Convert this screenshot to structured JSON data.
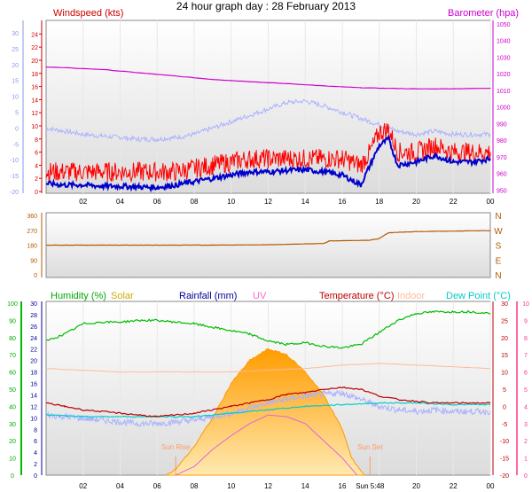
{
  "title": "24 hour graph day : 28 February 2013",
  "chart_data": [
    {
      "type": "line",
      "panel": "wind-baro",
      "labels": {
        "left": "Windspeed (kts)",
        "right": "Barometer (hpa)"
      },
      "x_ticks": [
        "02",
        "04",
        "06",
        "08",
        "10",
        "12",
        "14",
        "16",
        "18",
        "20",
        "22",
        "00"
      ],
      "y_left_ticks": [
        0,
        2,
        4,
        6,
        8,
        10,
        12,
        14,
        16,
        18,
        20,
        22,
        24
      ],
      "y_left_outer_ticks": [
        -20,
        -15,
        -10,
        -5,
        0,
        5,
        10,
        15,
        20,
        25,
        30
      ],
      "y_right_ticks": [
        950,
        960,
        970,
        980,
        990,
        1000,
        1010,
        1020,
        1030,
        1040,
        1050
      ],
      "ylim_left": [
        0,
        25
      ],
      "ylim_right": [
        948,
        1052
      ],
      "series": [
        {
          "key": "barometer",
          "color": "#cc00cc",
          "axis": "right",
          "x": [
            0,
            1,
            2,
            3,
            4,
            5,
            6,
            7,
            8,
            9,
            10,
            11,
            12,
            13,
            14,
            15,
            16,
            17,
            18,
            19,
            20,
            21,
            22,
            23,
            24
          ],
          "y": [
            1024,
            1023.5,
            1023,
            1022.5,
            1021.5,
            1020.5,
            1019.5,
            1018.5,
            1017.5,
            1016.5,
            1015.8,
            1015.2,
            1014.5,
            1014,
            1013.3,
            1012.6,
            1012,
            1011.5,
            1011.2,
            1011,
            1010.8,
            1010.8,
            1010.9,
            1011,
            1011.2
          ]
        },
        {
          "key": "wind-gust",
          "color": "#ff0000",
          "axis": "left",
          "x": [
            0,
            1,
            2,
            3,
            4,
            5,
            6,
            7,
            8,
            9,
            10,
            11,
            12,
            13,
            14,
            15,
            16,
            17,
            17.5,
            18,
            18.5,
            19,
            20,
            21,
            22,
            23,
            24
          ],
          "y": [
            3,
            3,
            3,
            3,
            3,
            3,
            3,
            3,
            3.5,
            4,
            4.5,
            5,
            5,
            5,
            5,
            5,
            5,
            4,
            6,
            9,
            9.5,
            6,
            6,
            7,
            6,
            6,
            6
          ]
        },
        {
          "key": "wind-avg",
          "color": "#0000cc",
          "axis": "left",
          "x": [
            0,
            1,
            2,
            3,
            4,
            5,
            6,
            7,
            8,
            9,
            10,
            11,
            12,
            13,
            14,
            15,
            16,
            17,
            17.5,
            18,
            18.5,
            19,
            20,
            21,
            22,
            23,
            24
          ],
          "y": [
            1.2,
            1,
            1,
            0.8,
            0.8,
            0.7,
            0.6,
            1,
            1.5,
            2,
            2.5,
            3,
            3,
            3.2,
            3.3,
            3,
            2.5,
            1,
            4,
            7,
            8,
            4,
            4.5,
            5.5,
            4.5,
            4.5,
            5
          ]
        },
        {
          "key": "outer-temp",
          "color": "#aab2ff",
          "axis": "outer",
          "x": [
            0,
            1,
            2,
            3,
            4,
            5,
            6,
            7,
            8,
            9,
            10,
            11,
            12,
            13,
            14,
            15,
            16,
            17,
            18,
            19,
            20,
            21,
            22,
            23,
            24
          ],
          "y": [
            0,
            -1,
            -2,
            -2.5,
            -3,
            -3.5,
            -3.5,
            -3,
            -2,
            0,
            2,
            4,
            6,
            8,
            8.5,
            7,
            5,
            3,
            1,
            -1,
            -2,
            -1,
            -2,
            -2,
            -2
          ]
        }
      ]
    },
    {
      "type": "line",
      "panel": "wind-dir",
      "y_left_ticks": [
        0,
        90,
        180,
        270,
        360
      ],
      "y_right_labels": [
        "N",
        "W",
        "S",
        "E",
        "N"
      ],
      "ylim_left": [
        0,
        360
      ],
      "series": [
        {
          "key": "wind-direction",
          "color": "#b35900",
          "x": [
            0,
            6,
            9,
            12,
            15,
            15.3,
            17.5,
            18,
            18.5,
            20,
            22,
            24
          ],
          "y": [
            180,
            180,
            180,
            182,
            190,
            205,
            210,
            220,
            255,
            262,
            265,
            268
          ]
        }
      ]
    },
    {
      "type": "line",
      "panel": "temp-hum",
      "labels": {
        "humidity": "Humidity (%)",
        "solar": "Solar",
        "rainfall": "Rainfall (mm)",
        "uv": "UV",
        "temperature": "Temperature (°C)",
        "indoor": "Indoor",
        "dewpoint": "Dew Point (°C)"
      },
      "annotations": {
        "sunrise": "Sun Rise",
        "sunset": "Sun Set",
        "sunset_time": "Sun 5:48"
      },
      "y_humidity_ticks": [
        0,
        10,
        20,
        30,
        40,
        50,
        60,
        70,
        80,
        90,
        100
      ],
      "y_rain_ticks": [
        0,
        2,
        4,
        6,
        8,
        10,
        12,
        14,
        16,
        18,
        20,
        22,
        24,
        26,
        28,
        30
      ],
      "y_temp_ticks": [
        -20,
        -15,
        -10,
        -5,
        0,
        5,
        10,
        15,
        20,
        25,
        30
      ],
      "y_uv_ticks": [
        0,
        1,
        2,
        3,
        4,
        5,
        6,
        7,
        8,
        9,
        10
      ],
      "ylim_humidity": [
        0,
        100
      ],
      "ylim_temp": [
        -20,
        30
      ],
      "series": [
        {
          "key": "humidity",
          "color": "#00bb00",
          "x": [
            0,
            1,
            2,
            3,
            4,
            5,
            6,
            7,
            8,
            9,
            10,
            11,
            12,
            13,
            14,
            15,
            16,
            17,
            18,
            19,
            20,
            21,
            22,
            23,
            24
          ],
          "y": [
            78,
            82,
            88,
            89,
            89,
            90,
            90,
            89,
            88,
            86,
            84,
            82,
            78,
            76,
            77,
            75,
            74,
            76,
            83,
            90,
            94,
            95,
            95,
            95,
            94
          ]
        },
        {
          "key": "indoor",
          "color": "#ffbb99",
          "x": [
            0,
            2,
            4,
            6,
            8,
            10,
            12,
            14,
            16,
            18,
            20,
            22,
            24
          ],
          "y": [
            11,
            10.5,
            10,
            10,
            10,
            10,
            10.5,
            11,
            12,
            12.5,
            12,
            11.5,
            11
          ]
        },
        {
          "key": "temperature",
          "color": "#bb0000",
          "x": [
            0,
            1,
            2,
            3,
            4,
            5,
            6,
            7,
            8,
            9,
            10,
            11,
            12,
            13,
            14,
            15,
            16,
            17,
            18,
            19,
            20,
            21,
            22,
            23,
            24
          ],
          "y": [
            1,
            0,
            -1,
            -1.5,
            -2,
            -2.5,
            -3,
            -2.5,
            -2,
            -1,
            0,
            1,
            2,
            3.5,
            4,
            5,
            5.5,
            5,
            3,
            2,
            1.5,
            1,
            1,
            1,
            1
          ]
        },
        {
          "key": "feels-like",
          "color": "#aab2ff",
          "x": [
            0,
            1,
            2,
            3,
            4,
            5,
            6,
            7,
            8,
            9,
            10,
            11,
            12,
            13,
            14,
            15,
            16,
            17,
            18,
            19,
            20,
            21,
            22,
            23,
            24
          ],
          "y": [
            -2.5,
            -3,
            -3.5,
            -4,
            -4.5,
            -5,
            -5,
            -4.5,
            -4,
            -3,
            -2,
            -0.5,
            1,
            2,
            3,
            3.5,
            4,
            2,
            0,
            -1,
            -1.5,
            -1,
            -1.5,
            -1.5,
            -1.5
          ]
        },
        {
          "key": "dewpoint",
          "color": "#00cccc",
          "x": [
            0,
            2,
            4,
            6,
            8,
            10,
            12,
            14,
            16,
            18,
            20,
            22,
            24
          ],
          "y": [
            -2.5,
            -3,
            -3,
            -3,
            -3,
            -2,
            -1,
            0,
            0.5,
            1,
            1,
            0.5,
            0.5
          ]
        },
        {
          "key": "solar",
          "color": "#ffaa00",
          "x": [
            6.5,
            7,
            8,
            9,
            10,
            11,
            12,
            13,
            14,
            15,
            16,
            16.5,
            17.2
          ],
          "y": [
            0,
            1,
            5,
            10,
            16,
            20,
            22,
            21,
            18,
            14,
            8,
            3,
            0
          ]
        },
        {
          "key": "uv",
          "color": "#dd66dd",
          "x": [
            7,
            8,
            9,
            10,
            11,
            12,
            13,
            14,
            15,
            16,
            16.8
          ],
          "y": [
            0,
            0.5,
            1.5,
            2.3,
            3,
            3.5,
            3.4,
            3,
            2,
            1,
            0
          ]
        }
      ]
    }
  ]
}
